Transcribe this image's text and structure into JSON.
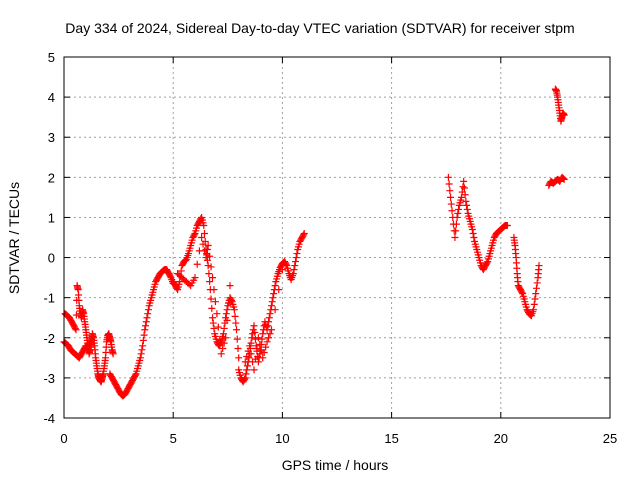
{
  "chart_data": {
    "type": "scatter",
    "title": "Day 334 of 2024, Sidereal Day-to-day VTEC variation (SDTVAR) for receiver stpm",
    "xlabel": "GPS time / hours",
    "ylabel": "SDTVAR / TECUs",
    "xlim": [
      0,
      25
    ],
    "ylim": [
      -4,
      5
    ],
    "xticks": [
      0,
      5,
      10,
      15,
      20,
      25
    ],
    "yticks": [
      -4,
      -3,
      -2,
      -1,
      0,
      1,
      2,
      3,
      4,
      5
    ],
    "grid": true,
    "marker": "plus",
    "marker_color": "#ff0000",
    "series": [
      {
        "name": "SDTVAR",
        "tracks": [
          {
            "x": [
              0.0,
              0.1,
              0.2,
              0.3,
              0.4,
              0.5,
              0.6,
              0.7,
              0.8,
              0.9,
              1.0,
              1.1,
              1.2
            ],
            "y": [
              -2.1,
              -2.15,
              -2.2,
              -2.3,
              -2.35,
              -2.4,
              -2.45,
              -2.5,
              -2.4,
              -2.3,
              -2.2,
              -2.3,
              -2.1
            ]
          },
          {
            "x": [
              0.05,
              0.15,
              0.25,
              0.35,
              0.45,
              0.55,
              0.6,
              0.65,
              0.7,
              0.75,
              0.8,
              0.85,
              0.9,
              0.95,
              1.0,
              1.05,
              1.1,
              1.15,
              1.2,
              1.25,
              1.3,
              1.35,
              1.4,
              1.45,
              1.5,
              1.55,
              1.6,
              1.65,
              1.7,
              1.75,
              1.8,
              1.85,
              1.9,
              1.95,
              2.0,
              2.05,
              2.1,
              2.15,
              2.2,
              2.25
            ],
            "y": [
              -1.4,
              -1.45,
              -1.5,
              -1.6,
              -1.7,
              -1.8,
              -0.7,
              -0.8,
              -1.2,
              -1.4,
              -1.5,
              -1.3,
              -1.4,
              -1.6,
              -1.8,
              -2.0,
              -2.2,
              -2.4,
              -2.3,
              -2.1,
              -1.9,
              -2.0,
              -2.2,
              -2.5,
              -2.7,
              -2.9,
              -3.0,
              -3.05,
              -3.1,
              -3.0,
              -2.9,
              -2.7,
              -2.5,
              -2.1,
              -1.95,
              -1.9,
              -2.0,
              -2.1,
              -2.3,
              -2.4
            ]
          },
          {
            "x": [
              2.1,
              2.2,
              2.3,
              2.4,
              2.5,
              2.6,
              2.7,
              2.8,
              2.9,
              3.0,
              3.1,
              3.2,
              3.3,
              3.4,
              3.5,
              3.6,
              3.7,
              3.8,
              3.9,
              4.0,
              4.1,
              4.2,
              4.3,
              4.4,
              4.5,
              4.6,
              4.7,
              4.8,
              4.9,
              5.0
            ],
            "y": [
              -2.9,
              -3.0,
              -3.1,
              -3.2,
              -3.3,
              -3.4,
              -3.45,
              -3.4,
              -3.3,
              -3.2,
              -3.1,
              -3.0,
              -2.9,
              -2.7,
              -2.5,
              -2.2,
              -1.8,
              -1.5,
              -1.2,
              -1.0,
              -0.8,
              -0.6,
              -0.5,
              -0.4,
              -0.35,
              -0.3,
              -0.3,
              -0.4,
              -0.5,
              -0.65
            ]
          },
          {
            "x": [
              5.0,
              5.1,
              5.2,
              5.3,
              5.4,
              5.5,
              5.6,
              5.7,
              5.8,
              5.9,
              6.0,
              6.1,
              6.2,
              6.3,
              6.4,
              6.5,
              6.6,
              6.7,
              6.8,
              6.9,
              7.0,
              7.1,
              7.2,
              7.3,
              7.4,
              7.5,
              7.6,
              7.7,
              7.8,
              7.9,
              8.0
            ],
            "y": [
              -0.6,
              -0.7,
              -0.8,
              -0.6,
              -0.2,
              -0.1,
              -0.05,
              0.1,
              0.3,
              0.5,
              0.6,
              0.8,
              0.9,
              1.0,
              0.8,
              0.2,
              -0.2,
              -0.8,
              -1.5,
              -1.9,
              -2.1,
              -2.2,
              -2.1,
              -1.9,
              -1.5,
              -1.2,
              -1.0,
              -1.1,
              -1.3,
              -1.8,
              -2.5
            ]
          },
          {
            "x": [
              5.2,
              5.4,
              5.6,
              5.8,
              6.0,
              6.3,
              6.5,
              6.6,
              6.8,
              7.0,
              7.2,
              7.4,
              7.6
            ],
            "y": [
              -0.4,
              -0.5,
              -0.6,
              -0.7,
              -0.5,
              0.5,
              0.0,
              0.3,
              -0.5,
              -1.4,
              -2.4,
              -2.0,
              -0.7
            ]
          },
          {
            "x": [
              8.0,
              8.1,
              8.2,
              8.3,
              8.4,
              8.5,
              8.6,
              8.7,
              8.8,
              8.9,
              9.0,
              9.1,
              9.2,
              9.3,
              9.4,
              9.5,
              9.6,
              9.7,
              9.8,
              9.9,
              10.0,
              10.1,
              10.2,
              10.3,
              10.4,
              10.5,
              10.6,
              10.7,
              10.8,
              10.9,
              11.0
            ],
            "y": [
              -2.8,
              -3.0,
              -3.1,
              -3.0,
              -2.7,
              -2.4,
              -2.0,
              -1.7,
              -2.2,
              -2.6,
              -2.3,
              -1.9,
              -1.6,
              -1.8,
              -1.5,
              -1.2,
              -0.9,
              -0.6,
              -0.4,
              -0.25,
              -0.15,
              -0.1,
              -0.2,
              -0.4,
              -0.55,
              -0.4,
              -0.1,
              0.2,
              0.4,
              0.5,
              0.6
            ]
          },
          {
            "x": [
              8.3,
              8.5,
              8.7,
              8.9,
              9.1,
              9.3,
              9.5,
              10.0
            ],
            "y": [
              -2.6,
              -2.2,
              -2.8,
              -2.0,
              -2.5,
              -2.1,
              -1.8,
              -0.3
            ]
          },
          {
            "x": [
              17.6,
              17.7,
              17.8,
              17.9,
              18.0,
              18.1,
              18.2,
              18.3,
              18.4,
              18.5,
              18.6,
              18.7,
              18.8,
              18.9,
              19.0,
              19.1,
              19.2,
              19.3,
              19.4,
              19.5,
              19.6,
              19.7,
              19.8,
              19.9,
              20.0,
              20.1,
              20.2,
              20.3
            ],
            "y": [
              2.0,
              1.5,
              1.0,
              0.5,
              1.0,
              1.3,
              1.5,
              1.9,
              1.4,
              1.1,
              0.9,
              0.7,
              0.4,
              0.2,
              0.0,
              -0.2,
              -0.3,
              -0.2,
              -0.1,
              0.1,
              0.3,
              0.5,
              0.6,
              0.65,
              0.7,
              0.75,
              0.8,
              0.8
            ]
          },
          {
            "x": [
              20.6,
              20.65,
              20.7,
              20.75,
              20.8,
              20.9,
              21.0,
              21.1,
              21.2,
              21.3,
              21.4,
              21.5,
              21.6,
              21.7,
              21.75
            ],
            "y": [
              0.5,
              0.3,
              0.0,
              -0.4,
              -0.7,
              -0.8,
              -0.9,
              -1.1,
              -1.3,
              -1.4,
              -1.45,
              -1.3,
              -0.9,
              -0.5,
              -0.2
            ]
          },
          {
            "x": [
              22.2,
              22.3,
              22.4,
              22.5,
              22.6,
              22.7,
              22.8,
              22.9
            ],
            "y": [
              1.8,
              1.9,
              1.85,
              1.9,
              1.95,
              1.9,
              2.0,
              1.95
            ]
          },
          {
            "x": [
              22.5,
              22.55,
              22.6,
              22.65,
              22.7,
              22.75,
              22.8,
              22.85,
              22.9
            ],
            "y": [
              4.2,
              4.15,
              4.0,
              3.8,
              3.6,
              3.4,
              3.5,
              3.6,
              3.55
            ]
          }
        ]
      }
    ]
  }
}
